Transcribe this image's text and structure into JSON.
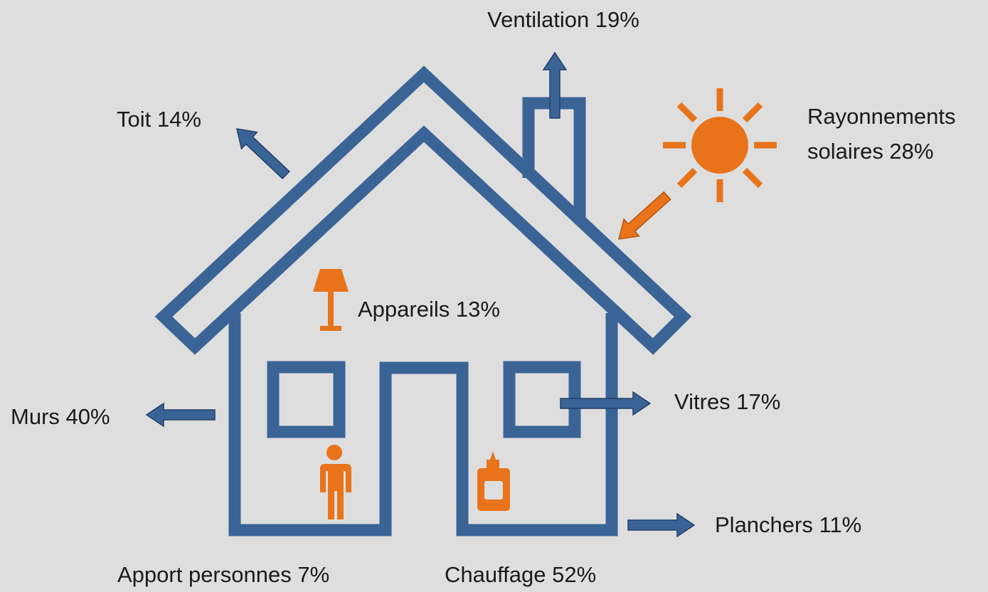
{
  "labels": {
    "ventilation": "Ventilation 19%",
    "toit": "Toit 14%",
    "rayonnements": [
      "Rayonnements",
      "solaires 28%"
    ],
    "appareils": "Appareils 13%",
    "murs": "Murs 40%",
    "vitres": "Vitres 17%",
    "planchers": "Planchers 11%",
    "apport_personnes": "Apport personnes 7%",
    "chauffage": "Chauffage 52%"
  }
}
